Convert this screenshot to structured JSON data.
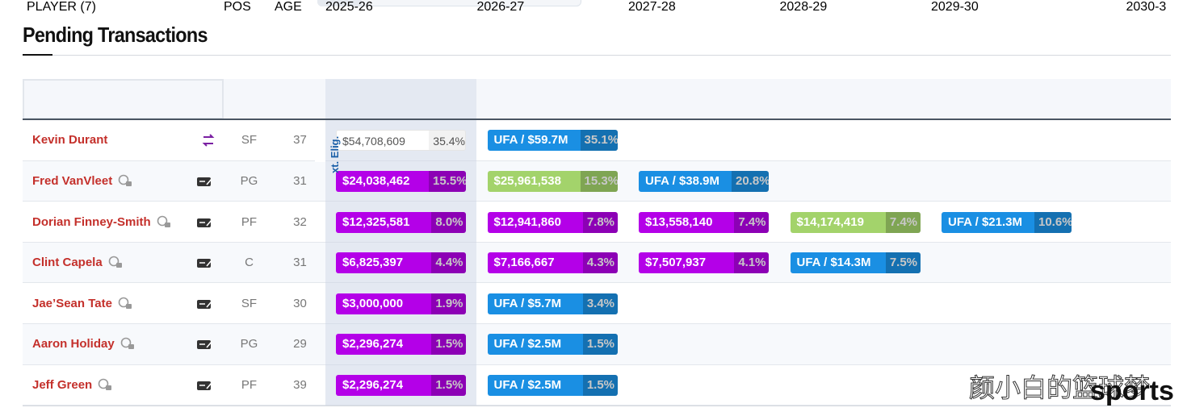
{
  "title": "Pending Transactions",
  "table": {
    "headers": [
      "PLAYER (7)",
      "POS",
      "AGE",
      "2025-26",
      "2026-27",
      "2027-28",
      "2028-29",
      "2029-30",
      "2030-3"
    ],
    "note": "xt. Elig.",
    "rows": [
      {
        "player": "Kevin Durant",
        "status_icon": "trade",
        "pos": "SF",
        "age": "37",
        "cells": [
          {
            "amount": "$54,708,609",
            "pct": "35.4%",
            "color": "#ffffff",
            "text_color": "#555555"
          },
          {
            "amount": "UFA / $59.7M",
            "pct": "35.1%",
            "color": "#1a8fe3",
            "text_color": "#ffffff"
          }
        ]
      },
      {
        "player": "Fred VanVleet",
        "status_icon": "tag",
        "pos": "PG",
        "age": "31",
        "cells": [
          {
            "amount": "$24,038,462",
            "pct": "15.5%",
            "color": "#b400e8",
            "text_color": "#ffffff"
          },
          {
            "amount": "$25,961,538",
            "pct": "15.3%",
            "color": "#a3d36b",
            "text_color": "#ffffff"
          },
          {
            "amount": "UFA / $38.9M",
            "pct": "20.8%",
            "color": "#1a8fe3",
            "text_color": "#ffffff"
          }
        ]
      },
      {
        "player": "Dorian Finney-Smith",
        "status_icon": "tag",
        "pos": "PF",
        "age": "32",
        "cells": [
          {
            "amount": "$12,325,581",
            "pct": "8.0%",
            "color": "#b400e8",
            "text_color": "#ffffff"
          },
          {
            "amount": "$12,941,860",
            "pct": "7.8%",
            "color": "#b400e8",
            "text_color": "#ffffff"
          },
          {
            "amount": "$13,558,140",
            "pct": "7.4%",
            "color": "#b400e8",
            "text_color": "#ffffff"
          },
          {
            "amount": "$14,174,419",
            "pct": "7.4%",
            "color": "#a3d36b",
            "text_color": "#ffffff"
          },
          {
            "amount": "UFA / $21.3M",
            "pct": "10.6%",
            "color": "#1a8fe3",
            "text_color": "#ffffff"
          }
        ]
      },
      {
        "player": "Clint Capela",
        "status_icon": "tag",
        "pos": "C",
        "age": "31",
        "cells": [
          {
            "amount": "$6,825,397",
            "pct": "4.4%",
            "color": "#b400e8",
            "text_color": "#ffffff"
          },
          {
            "amount": "$7,166,667",
            "pct": "4.3%",
            "color": "#b400e8",
            "text_color": "#ffffff"
          },
          {
            "amount": "$7,507,937",
            "pct": "4.1%",
            "color": "#b400e8",
            "text_color": "#ffffff"
          },
          {
            "amount": "UFA / $14.3M",
            "pct": "7.5%",
            "color": "#1a8fe3",
            "text_color": "#ffffff"
          }
        ]
      },
      {
        "player": "Jae’Sean Tate",
        "status_icon": "tag",
        "pos": "SF",
        "age": "30",
        "cells": [
          {
            "amount": "$3,000,000",
            "pct": "1.9%",
            "color": "#b400e8",
            "text_color": "#ffffff"
          },
          {
            "amount": "UFA / $5.7M",
            "pct": "3.4%",
            "color": "#1a8fe3",
            "text_color": "#ffffff"
          }
        ]
      },
      {
        "player": "Aaron Holiday",
        "status_icon": "tag",
        "pos": "PG",
        "age": "29",
        "cells": [
          {
            "amount": "$2,296,274",
            "pct": "1.5%",
            "color": "#b400e8",
            "text_color": "#ffffff"
          },
          {
            "amount": "UFA / $2.5M",
            "pct": "1.5%",
            "color": "#1a8fe3",
            "text_color": "#ffffff"
          }
        ]
      },
      {
        "player": "Jeff Green",
        "status_icon": "tag",
        "pos": "PF",
        "age": "39",
        "cells": [
          {
            "amount": "$2,296,274",
            "pct": "1.5%",
            "color": "#b400e8",
            "text_color": "#ffffff"
          },
          {
            "amount": "UFA / $2.5M",
            "pct": "1.5%",
            "color": "#1a8fe3",
            "text_color": "#ffffff"
          }
        ]
      }
    ]
  },
  "watermark": [
    "颜小白的篮球梦",
    "sports"
  ]
}
